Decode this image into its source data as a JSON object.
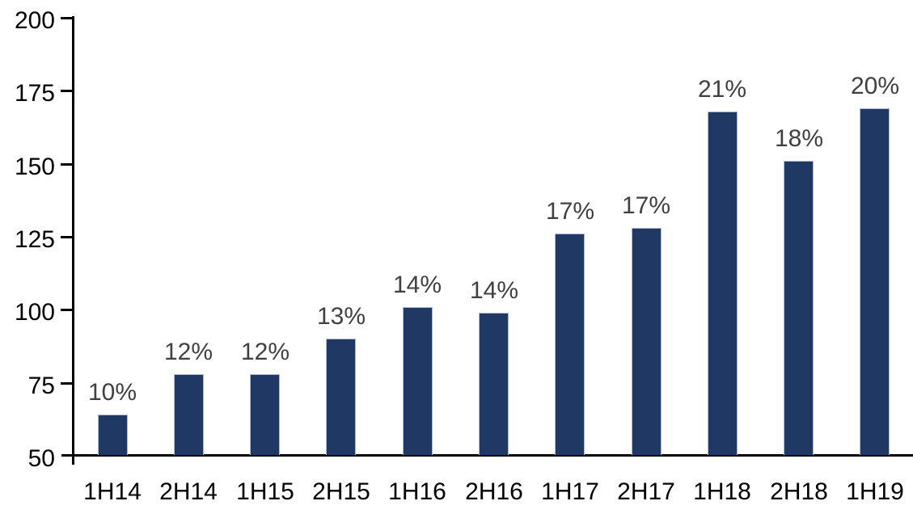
{
  "chart_data": {
    "type": "bar",
    "title": "",
    "xlabel": "",
    "ylabel": "",
    "categories": [
      "1H14",
      "2H14",
      "1H15",
      "2H15",
      "1H16",
      "2H16",
      "1H17",
      "2H17",
      "1H18",
      "2H18",
      "1H19"
    ],
    "values": [
      64,
      78,
      78,
      90,
      101,
      99,
      126,
      128,
      168,
      151,
      169
    ],
    "data_labels": [
      "10%",
      "12%",
      "12%",
      "13%",
      "14%",
      "14%",
      "17%",
      "17%",
      "21%",
      "18%",
      "20%"
    ],
    "ylim": [
      50,
      200
    ],
    "y_ticks": [
      50,
      75,
      100,
      125,
      150,
      175,
      200
    ],
    "grid": "off",
    "legend": "none",
    "colors": {
      "bar_fill": "#1F3864",
      "bar_border": "#A9BBD6",
      "data_label": "#404040",
      "axis": "#000000",
      "tick_label": "#000000",
      "background": "#FFFFFF"
    }
  }
}
